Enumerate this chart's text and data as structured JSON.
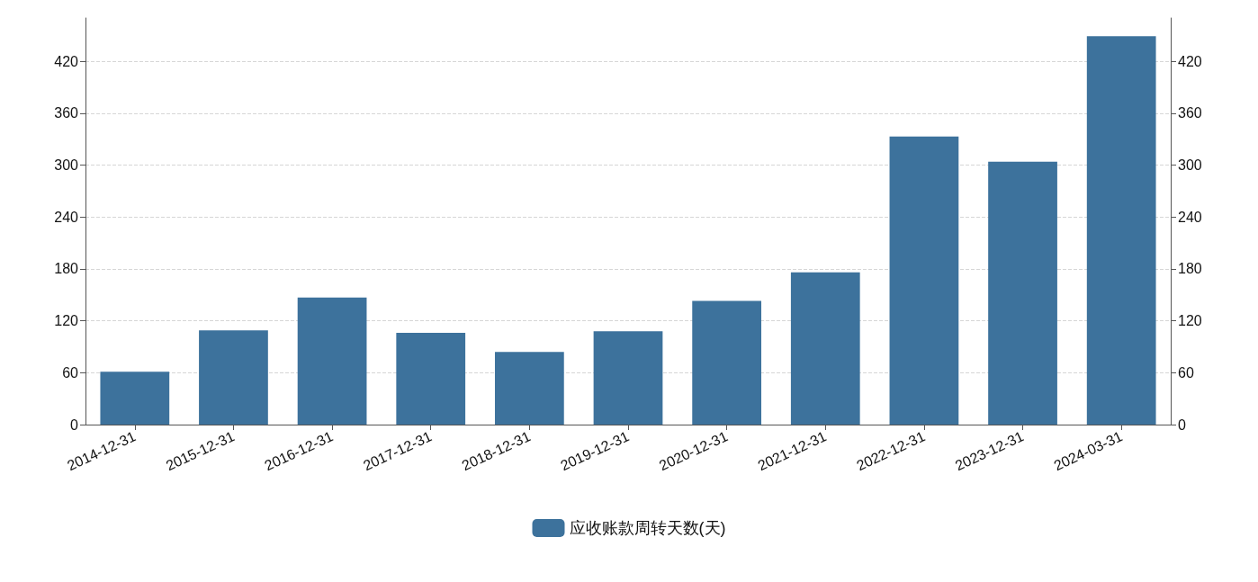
{
  "chart_data": {
    "type": "bar",
    "categories": [
      "2014-12-31",
      "2015-12-31",
      "2016-12-31",
      "2017-12-31",
      "2018-12-31",
      "2019-12-31",
      "2020-12-31",
      "2021-12-31",
      "2022-12-31",
      "2023-12-31",
      "2024-03-31"
    ],
    "series": [
      {
        "name": "应收账款周转天数(天)",
        "color": "#3d729c",
        "values": [
          61,
          109,
          147,
          106,
          84,
          108,
          143,
          176,
          333,
          304,
          449
        ]
      }
    ],
    "ylim": [
      0,
      470
    ],
    "yticks": [
      0,
      60,
      120,
      180,
      240,
      300,
      360,
      420
    ],
    "y2lim": [
      0,
      470
    ],
    "y2ticks": [
      0,
      60,
      120,
      180,
      240,
      300,
      360,
      420
    ],
    "grid": "y",
    "legend": "bottom"
  }
}
